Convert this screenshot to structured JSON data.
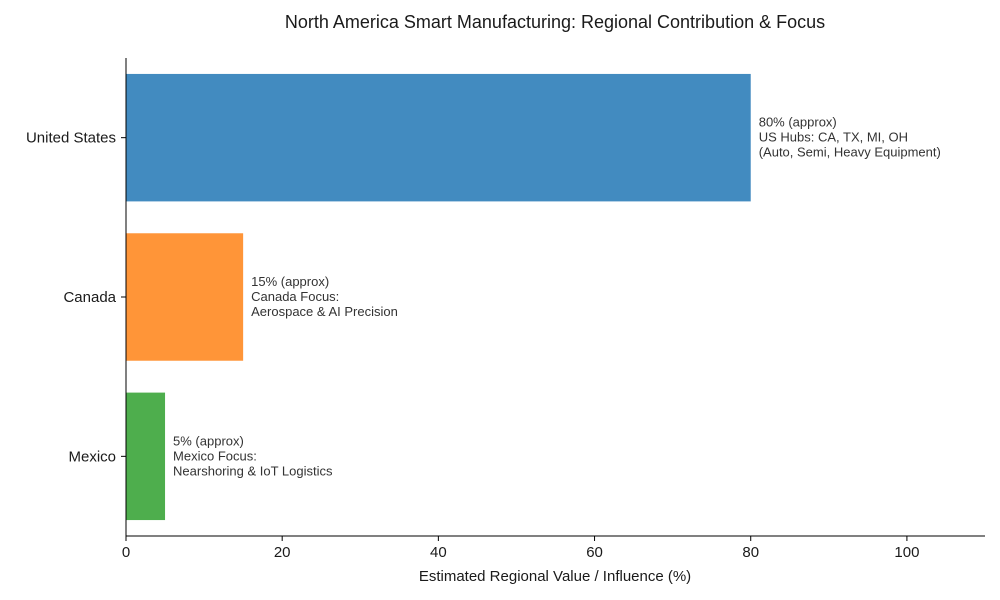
{
  "chart_data": {
    "type": "bar",
    "orientation": "horizontal",
    "title": "North America Smart Manufacturing: Regional Contribution & Focus",
    "xlabel": "Estimated Regional Value / Influence (%)",
    "ylabel": "",
    "xlim": [
      0,
      110
    ],
    "xticks": [
      0,
      20,
      40,
      60,
      80,
      100
    ],
    "grid": false,
    "categories": [
      "United States",
      "Canada",
      "Mexico"
    ],
    "values": [
      80,
      15,
      5
    ],
    "colors": [
      "#428bc0",
      "#ff9538",
      "#4eae4d"
    ],
    "annotations": [
      [
        "80% (approx)",
        "US Hubs: CA, TX, MI, OH",
        "(Auto, Semi, Heavy Equipment)"
      ],
      [
        "15% (approx)",
        "Canada Focus:",
        "Aerospace & AI Precision"
      ],
      [
        "5% (approx)",
        "Mexico Focus:",
        "Nearshoring & IoT Logistics"
      ]
    ]
  }
}
